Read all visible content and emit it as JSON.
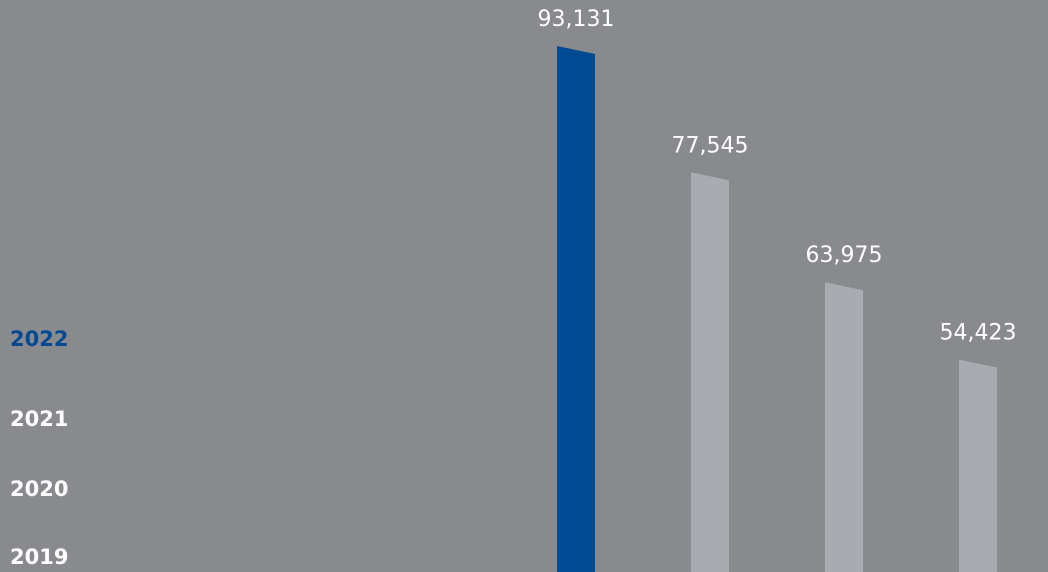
{
  "chart_data": {
    "type": "bar",
    "categories": [
      "2022",
      "2021",
      "2020",
      "2019"
    ],
    "values": [
      93131,
      77545,
      63975,
      54423
    ],
    "value_labels": [
      "93,131",
      "77,545",
      "63,975",
      "54,423"
    ],
    "colors": [
      "#004a93",
      "#a9abb0",
      "#a9abb0",
      "#a9abb0"
    ],
    "color": "#a9abb0",
    "ylim": [
      28700,
      99300
    ]
  }
}
